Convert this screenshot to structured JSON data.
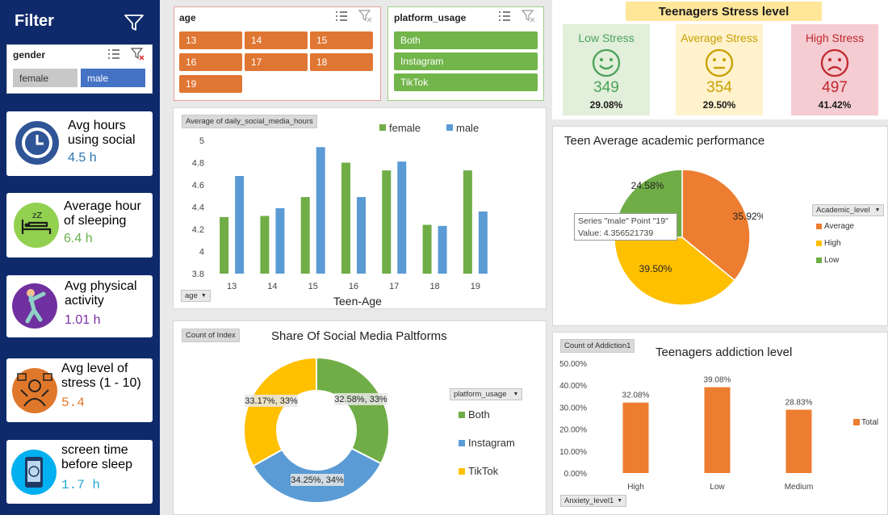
{
  "sidebar": {
    "title": "Filter",
    "gender_slicer": {
      "title": "gender",
      "items": [
        "female",
        "male"
      ]
    },
    "kpis": [
      {
        "label": "Avg hours using social",
        "value": "4.5 h",
        "icon": "clock-icon",
        "color": "#2b76b3"
      },
      {
        "label": "Average hour of sleeping",
        "value": "6.4 h",
        "icon": "bed-icon",
        "color": "#6ab04c"
      },
      {
        "label": "Avg physical activity",
        "value": "1.01 h",
        "icon": "exercise-icon",
        "color": "#7b2fa3"
      },
      {
        "label": "Avg level of stress (1 - 10)",
        "value": "5.4",
        "icon": "stress-icon",
        "color": "#e0782c"
      },
      {
        "label": "screen time before sleep",
        "value": "1.7 h",
        "icon": "phone-icon",
        "color": "#27a7d8"
      }
    ]
  },
  "age_slicer": {
    "title": "age",
    "items": [
      "13",
      "14",
      "15",
      "16",
      "17",
      "18",
      "19"
    ]
  },
  "platform_slicer": {
    "title": "platform_usage",
    "items": [
      "Both",
      "Instagram",
      "TikTok"
    ]
  },
  "stress": {
    "title": "Teenagers Stress level",
    "cards": [
      {
        "label": "Low Stress",
        "count": "349",
        "pct": "29.08%",
        "bg": "#e2efda",
        "color": "#4aa25a",
        "face": "smile"
      },
      {
        "label": "Average Stress",
        "count": "354",
        "pct": "29.50%",
        "bg": "#fff2cc",
        "color": "#c8a000",
        "face": "neutral"
      },
      {
        "label": "High Stress",
        "count": "497",
        "pct": "41.42%",
        "bg": "#f4ccd1",
        "color": "#c0282e",
        "face": "sad"
      }
    ]
  },
  "bar_chart": {
    "field_tag": "Average of daily_social_media_hours",
    "axis_button": "age",
    "xlabel": "Teen-Age",
    "tooltip_series": "Series \"male\" Point \"19\"",
    "tooltip_value": "Value: 4.356521739"
  },
  "pie_chart": {
    "title": "Teen Average academic performance",
    "legend_button": "Academic_level",
    "slice_labels": [
      "35.92%",
      "39.50%",
      "24.58%"
    ]
  },
  "donut_chart": {
    "title": "Share Of Social Media Paltforms",
    "field_tag": "Count of Index",
    "legend_button": "platform_usage",
    "slice_labels": [
      "32.58%, 33%",
      "34.25%, 34%",
      "33.17%, 33%"
    ]
  },
  "addiction_chart": {
    "title": "Teenagers addiction level",
    "field_tag": "Count of Addiction1",
    "axis_button": "Anxiety_level1",
    "legend_label": "Total",
    "data_labels": [
      "32.08%",
      "39.08%",
      "28.83%"
    ]
  },
  "chart_data": [
    {
      "type": "bar",
      "categories": [
        "13",
        "14",
        "15",
        "16",
        "17",
        "18",
        "19"
      ],
      "series": [
        {
          "name": "female",
          "color": "#70ad47",
          "values": [
            4.31,
            4.32,
            4.49,
            4.8,
            4.73,
            4.24,
            4.73
          ]
        },
        {
          "name": "male",
          "color": "#5b9bd5",
          "values": [
            4.68,
            4.39,
            4.94,
            4.49,
            4.81,
            4.23,
            4.36
          ]
        }
      ],
      "ylim": [
        3.8,
        5
      ],
      "yticks": [
        "3.8",
        "4",
        "4.2",
        "4.4",
        "4.6",
        "4.8",
        "5"
      ],
      "xlabel": "Teen-Age",
      "legend": "top"
    },
    {
      "type": "pie",
      "categories": [
        "Average",
        "High",
        "Low"
      ],
      "values": [
        35.92,
        39.5,
        24.58
      ],
      "colors": [
        "#ed7d31",
        "#ffc000",
        "#70ad47"
      ],
      "title": "Teen Average academic performance",
      "legend": "right"
    },
    {
      "type": "pie",
      "categories": [
        "Both",
        "Instagram",
        "TikTok"
      ],
      "values": [
        32.58,
        34.25,
        33.17
      ],
      "colors": [
        "#70ad47",
        "#5b9bd5",
        "#ffc000"
      ],
      "title": "Share Of Social Media Paltforms",
      "legend": "right"
    },
    {
      "type": "bar",
      "categories": [
        "High",
        "Low",
        "Medium"
      ],
      "series": [
        {
          "name": "Total",
          "color": "#ed7d31",
          "values": [
            32.08,
            39.08,
            28.83
          ]
        }
      ],
      "ylim": [
        0,
        50
      ],
      "yticks": [
        "0.00%",
        "10.00%",
        "20.00%",
        "30.00%",
        "40.00%",
        "50.00%"
      ],
      "title": "Teenagers addiction level",
      "legend": "right"
    }
  ]
}
